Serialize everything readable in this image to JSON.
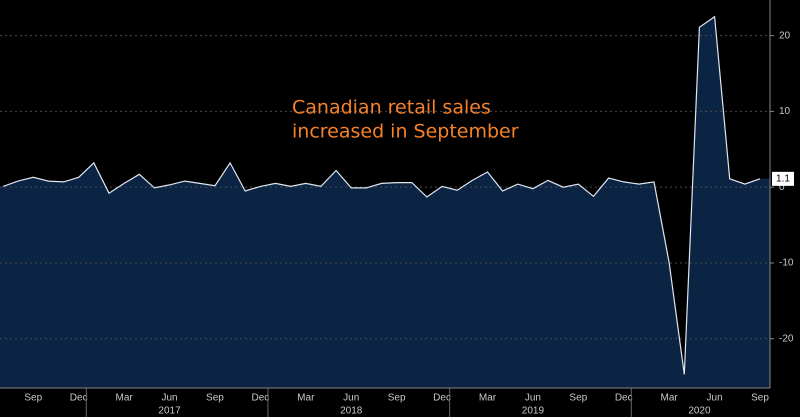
{
  "chart_data": {
    "type": "area",
    "annotation": [
      "Canadian retail sales",
      "increased in September"
    ],
    "categories": [
      null,
      null,
      "Sep",
      null,
      null,
      "Dec",
      null,
      null,
      "Mar",
      null,
      null,
      "Jun",
      null,
      null,
      "Sep",
      null,
      null,
      "Dec",
      null,
      null,
      "Mar",
      null,
      null,
      "Jun",
      null,
      null,
      "Sep",
      null,
      null,
      "Dec",
      null,
      null,
      "Mar",
      null,
      null,
      "Jun",
      null,
      null,
      "Sep",
      null,
      null,
      "Dec",
      null,
      null,
      "Mar",
      null,
      null,
      "Jun",
      null,
      null,
      "Sep"
    ],
    "year_labels": [
      null,
      null,
      null,
      null,
      null,
      null,
      null,
      null,
      null,
      null,
      null,
      "2017",
      null,
      null,
      null,
      null,
      null,
      null,
      null,
      null,
      null,
      null,
      null,
      "2018",
      null,
      null,
      null,
      null,
      null,
      null,
      null,
      null,
      null,
      null,
      null,
      "2019",
      null,
      null,
      null,
      null,
      null,
      null,
      null,
      null,
      null,
      null,
      "2020",
      null,
      null,
      null,
      null
    ],
    "values": [
      0.1,
      0.8,
      1.3,
      0.8,
      0.7,
      1.3,
      3.2,
      -0.8,
      0.5,
      1.7,
      -0.1,
      0.3,
      0.8,
      0.5,
      0.2,
      3.2,
      -0.5,
      0.1,
      0.5,
      0.1,
      0.5,
      0.1,
      2.2,
      -0.1,
      -0.1,
      0.5,
      0.6,
      0.6,
      -1.3,
      0.1,
      -0.4,
      0.9,
      2.0,
      -0.5,
      0.4,
      -0.2,
      0.9,
      0.0,
      0.4,
      -1.2,
      1.2,
      0.7,
      0.4,
      0.7,
      -10.0,
      -24.7,
      21.1,
      22.5,
      1.1,
      0.4,
      1.1
    ],
    "color": "#dfe6f0",
    "fill": "#0c2443",
    "ylim": [
      -26.5,
      24.7
    ],
    "yticks": [
      -20,
      -10,
      0,
      10,
      20
    ],
    "grid": true
  }
}
